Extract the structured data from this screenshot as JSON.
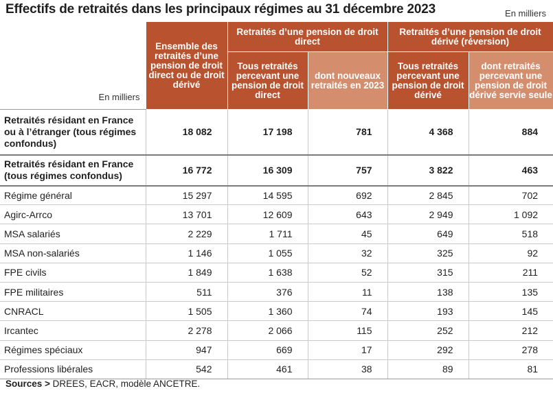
{
  "title": "Effectifs de retraités dans les principaux régimes au 31 décembre 2023",
  "unit_top": "En milliers",
  "corner_label": "En milliers",
  "headers": {
    "col1": "Ensemble des retraités d’une pension de droit direct ou de droit dérivé",
    "group_direct": "Retraités d’une pension de droit direct",
    "group_derive": "Retraités d’une pension de droit dérivé (réversion)",
    "col2": "Tous retraités percevant une pension de droit direct",
    "col3": "dont nouveaux retraités en 2023",
    "col4": "Tous retraités percevant une pension de droit dérivé",
    "col5": "dont retraités percevant une pension de droit dérivé servie seule"
  },
  "rows": [
    {
      "label": "Retraités résidant en France ou à l’étranger (tous régimes confondus)",
      "values": [
        "18 082",
        "17 198",
        "781",
        "4 368",
        "884"
      ]
    },
    {
      "label": "Retraités résidant en France (tous régimes confondus)",
      "values": [
        "16 772",
        "16 309",
        "757",
        "3 822",
        "463"
      ]
    },
    {
      "label": "Régime général",
      "values": [
        "15 297",
        "14 595",
        "692",
        "2 845",
        "702"
      ]
    },
    {
      "label": "Agirc-Arrco",
      "values": [
        "13 701",
        "12 609",
        "643",
        "2 949",
        "1 092"
      ]
    },
    {
      "label": "MSA salariés",
      "values": [
        "2 229",
        "1 711",
        "45",
        "649",
        "518"
      ]
    },
    {
      "label": "MSA non-salariés",
      "values": [
        "1 146",
        "1 055",
        "32",
        "325",
        "92"
      ]
    },
    {
      "label": "FPE civils",
      "values": [
        "1 849",
        "1 638",
        "52",
        "315",
        "211"
      ]
    },
    {
      "label": "FPE militaires",
      "values": [
        "511",
        "376",
        "11",
        "138",
        "135"
      ]
    },
    {
      "label": "CNRACL",
      "values": [
        "1 505",
        "1 360",
        "74",
        "193",
        "145"
      ]
    },
    {
      "label": "Ircantec",
      "values": [
        "2 278",
        "2 066",
        "115",
        "252",
        "212"
      ]
    },
    {
      "label": "Régimes spéciaux",
      "values": [
        "947",
        "669",
        "17",
        "292",
        "278"
      ]
    },
    {
      "label": "Professions libérales",
      "values": [
        "542",
        "461",
        "38",
        "89",
        "81"
      ]
    }
  ],
  "sources": {
    "prefix": "Sources >",
    "text": " DREES, EACR, modèle ANCETRE."
  },
  "colors": {
    "header_dark": "#b9532f",
    "header_light": "#d58e6d"
  }
}
